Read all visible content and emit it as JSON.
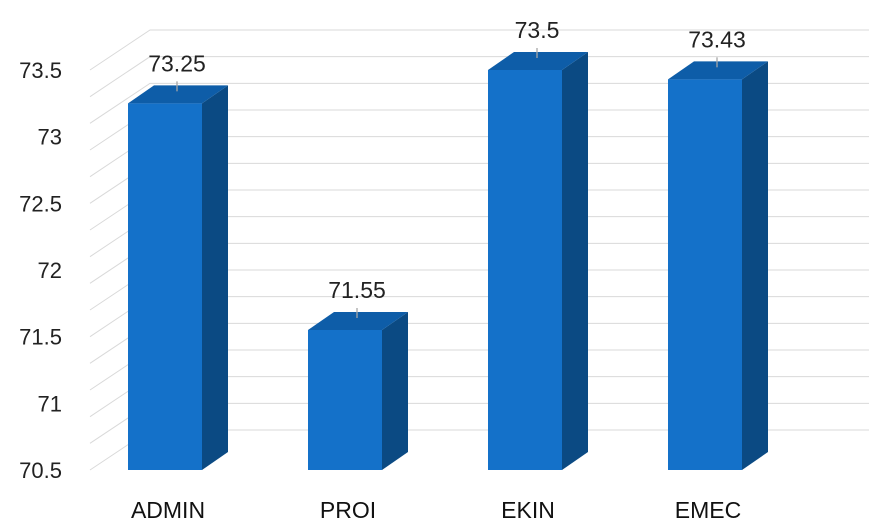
{
  "chart_data": {
    "type": "bar",
    "title": "",
    "xlabel": "",
    "ylabel": "",
    "categories": [
      "ADMIN",
      "PROI",
      "EKIN",
      "EMEC"
    ],
    "values": [
      73.25,
      71.55,
      73.5,
      73.43
    ],
    "data_labels": [
      "73.25",
      "71.55",
      "73.5",
      "73.43"
    ],
    "ylim": [
      70.5,
      73.5
    ],
    "yticks": [
      "70.5",
      "71",
      "71.5",
      "72",
      "72.5",
      "73",
      "73.5"
    ],
    "grid": true,
    "legend": "none",
    "colors": {
      "bar_front": "#1471C9",
      "bar_side": "#0B4A83",
      "bar_top": "#0E5DA8",
      "grid": "#D9D9D9",
      "leader": "#A6A6A6"
    }
  }
}
